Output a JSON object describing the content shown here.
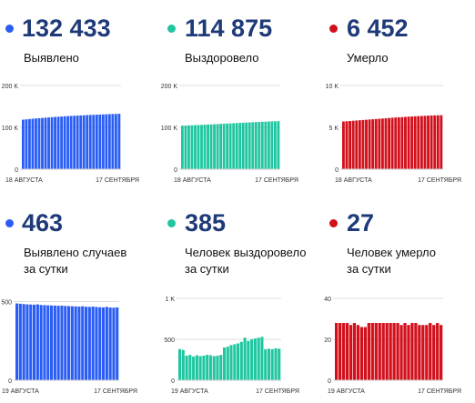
{
  "panels": [
    {
      "value": "132 433",
      "label": [
        "Выявлено"
      ],
      "color": "#2a5df4"
    },
    {
      "value": "114 875",
      "label": [
        "Выздоровело"
      ],
      "color": "#1fc6a0"
    },
    {
      "value": "6 452",
      "label": [
        "Умерло"
      ],
      "color": "#d2101c"
    },
    {
      "value": "463",
      "label": [
        "Выявлено случаев",
        "за сутки"
      ],
      "color": "#2a5df4"
    },
    {
      "value": "385",
      "label": [
        "Человек выздоровело",
        "за сутки"
      ],
      "color": "#1fc6a0"
    },
    {
      "value": "27",
      "label": [
        "Человек умерло",
        "за сутки"
      ],
      "color": "#d2101c"
    }
  ],
  "chart_data": [
    {
      "type": "bar",
      "x_start": "18 АВГУСТА",
      "x_end": "17 СЕНТЯБРЯ",
      "yticks": [
        "0",
        "100 K",
        "200 K"
      ],
      "ylim": [
        0,
        200000
      ],
      "values": [
        118400,
        119200,
        119900,
        120600,
        121300,
        121900,
        122500,
        123100,
        123700,
        124300,
        124900,
        125400,
        125900,
        126400,
        126900,
        127300,
        127700,
        128100,
        128500,
        128900,
        129300,
        129700,
        130000,
        130300,
        130600,
        130900,
        131300,
        131600,
        131900,
        132100,
        132433
      ]
    },
    {
      "type": "bar",
      "x_start": "18 АВГУСТА",
      "x_end": "17 СЕНТЯБРЯ",
      "yticks": [
        "0",
        "100 K",
        "200 K"
      ],
      "ylim": [
        0,
        200000
      ],
      "values": [
        104000,
        104300,
        104600,
        105000,
        105300,
        105700,
        106000,
        106400,
        106800,
        107100,
        107500,
        107900,
        108300,
        108700,
        109100,
        109500,
        109900,
        110300,
        110700,
        111100,
        111500,
        111800,
        112200,
        112600,
        113000,
        113300,
        113700,
        114000,
        114300,
        114600,
        114875
      ]
    },
    {
      "type": "bar",
      "x_start": "18 АВГУСТА",
      "x_end": "17 СЕНТЯБРЯ",
      "yticks": [
        "0",
        "5 K",
        "10 K"
      ],
      "ylim": [
        0,
        10000
      ],
      "values": [
        5700,
        5730,
        5760,
        5790,
        5820,
        5850,
        5880,
        5910,
        5940,
        5970,
        6000,
        6030,
        6060,
        6090,
        6120,
        6150,
        6180,
        6200,
        6220,
        6250,
        6280,
        6300,
        6320,
        6340,
        6360,
        6380,
        6400,
        6420,
        6430,
        6440,
        6452
      ]
    },
    {
      "type": "bar",
      "x_start": "19 АВГУСТА",
      "x_end": "17 СЕНТЯБРЯ",
      "yticks": [
        "0",
        "500"
      ],
      "ylim": [
        0,
        520
      ],
      "values": [
        488,
        486,
        484,
        482,
        481,
        480,
        482,
        478,
        477,
        476,
        475,
        474,
        473,
        474,
        472,
        471,
        470,
        469,
        468,
        470,
        467,
        466,
        468,
        465,
        464,
        463,
        466,
        462,
        461,
        463
      ]
    },
    {
      "type": "bar",
      "x_start": "19 АВГУСТА",
      "x_end": "17 СЕНТЯБРЯ",
      "yticks": [
        "0",
        "500",
        "1 K"
      ],
      "ylim": [
        0,
        1000
      ],
      "values": [
        380,
        370,
        300,
        310,
        290,
        305,
        295,
        300,
        310,
        305,
        295,
        300,
        310,
        400,
        410,
        430,
        440,
        450,
        470,
        520,
        480,
        500,
        510,
        520,
        530,
        380,
        385,
        380,
        390,
        385
      ]
    },
    {
      "type": "bar",
      "x_start": "19 АВГУСТА",
      "x_end": "17 СЕНТЯБРЯ",
      "yticks": [
        "0",
        "20",
        "40"
      ],
      "ylim": [
        0,
        40
      ],
      "values": [
        28,
        28,
        28,
        28,
        27,
        28,
        27,
        26,
        26,
        28,
        28,
        28,
        28,
        28,
        28,
        28,
        28,
        28,
        27,
        28,
        27,
        28,
        28,
        27,
        27,
        27,
        28,
        27,
        28,
        27
      ]
    }
  ]
}
